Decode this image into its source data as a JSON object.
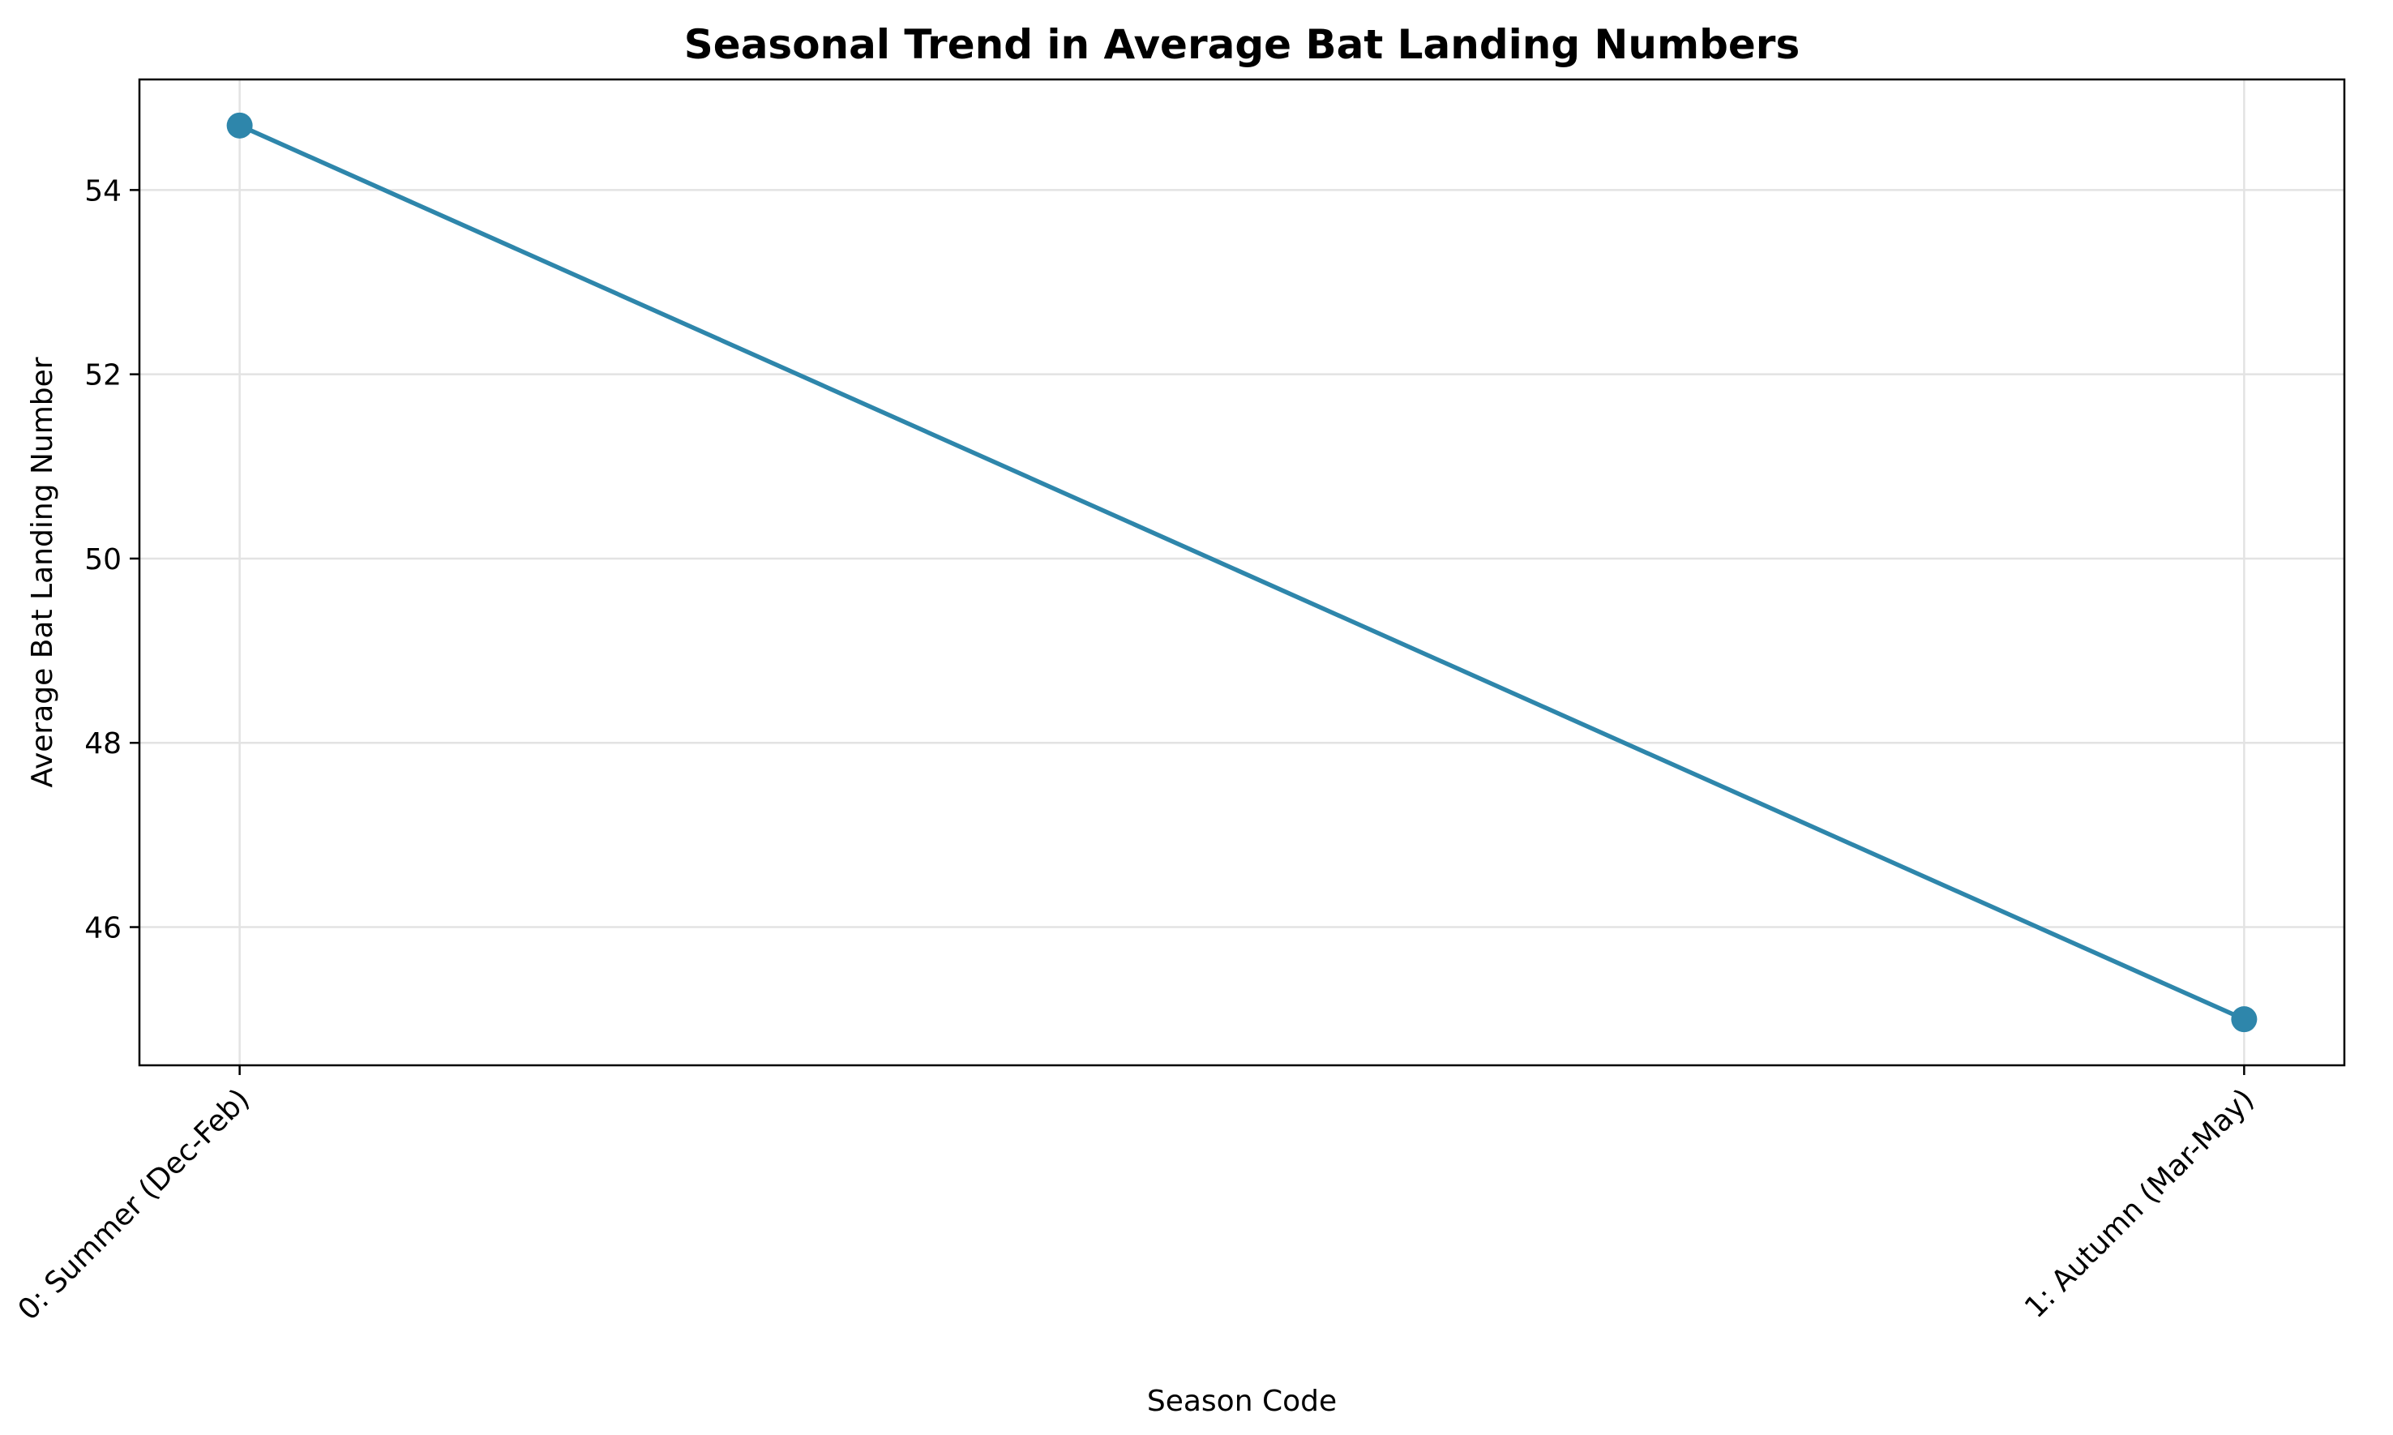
{
  "chart_data": {
    "type": "line",
    "title": "Seasonal Trend in Average Bat Landing Numbers",
    "xlabel": "Season Code",
    "ylabel": "Average Bat Landing Number",
    "categories": [
      "0: Summer (Dec-Feb)",
      "1: Autumn (Mar-May)"
    ],
    "x": [
      0,
      1
    ],
    "series": [
      {
        "values": [
          54.7,
          45.0
        ],
        "color": "#2e86ab",
        "marker": "circle"
      }
    ],
    "xlim": [
      -0.05,
      1.05
    ],
    "ylim": [
      44.5,
      55.2
    ],
    "yticks": [
      46,
      48,
      50,
      52,
      54
    ],
    "grid": true,
    "legend": "none"
  }
}
